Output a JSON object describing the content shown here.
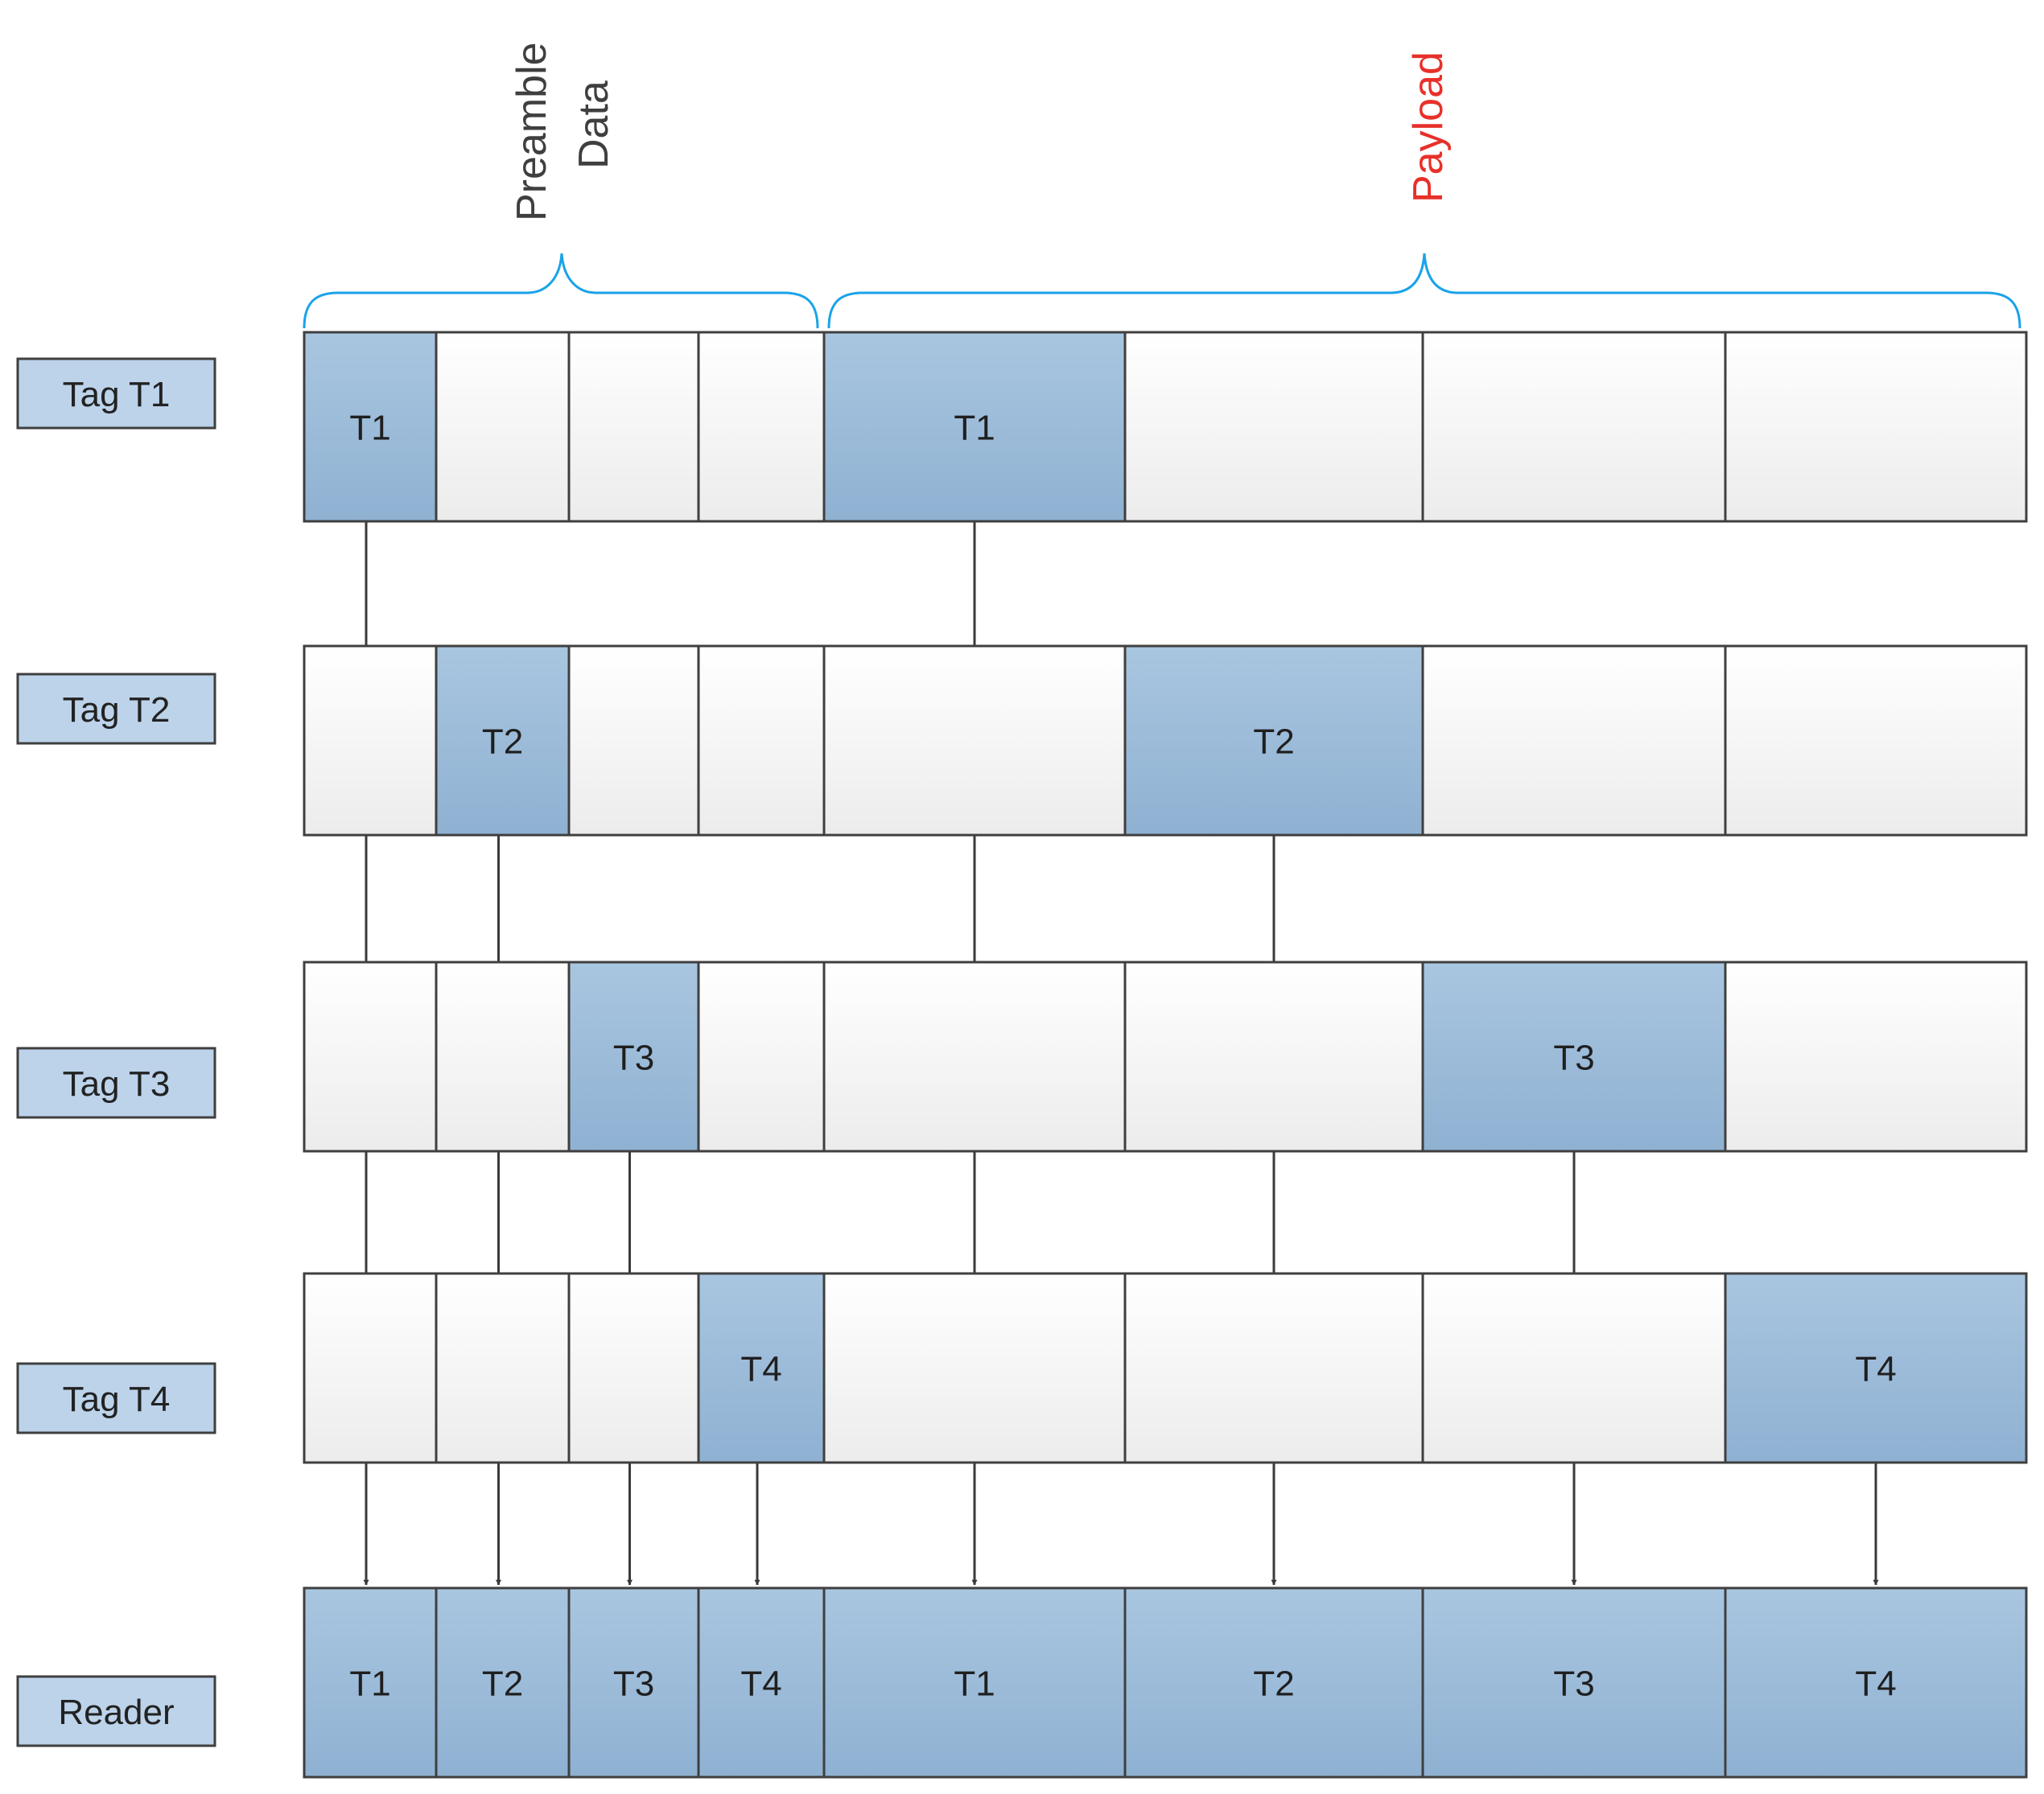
{
  "header": {
    "preamble_line1": "Preamble",
    "preamble_line2": "Data",
    "payload": "Payload",
    "payload_color": "#e8302a",
    "brace_color": "#1aa3e8"
  },
  "colors": {
    "filled_top": "#a9c6e0",
    "filled_bottom": "#8fb1d2",
    "empty_top": "#ffffff",
    "empty_bottom": "#ececec",
    "border": "#3f3f3f",
    "arrow": "#3a3a3a",
    "label_fill": "#bcd3ea"
  },
  "rows": [
    {
      "label": "Tag T1",
      "cells": [
        "T1",
        "",
        "",
        "",
        "T1",
        "",
        "",
        ""
      ]
    },
    {
      "label": "Tag T2",
      "cells": [
        "",
        "T2",
        "",
        "",
        "",
        "T2",
        "",
        ""
      ]
    },
    {
      "label": "Tag T3",
      "cells": [
        "",
        "",
        "T3",
        "",
        "",
        "",
        "T3",
        ""
      ]
    },
    {
      "label": "Tag T4",
      "cells": [
        "",
        "",
        "",
        "T4",
        "",
        "",
        "",
        "T4"
      ]
    },
    {
      "label": "Reader",
      "cells": [
        "T1",
        "T2",
        "T3",
        "T4",
        "T1",
        "T2",
        "T3",
        "T4"
      ]
    }
  ]
}
